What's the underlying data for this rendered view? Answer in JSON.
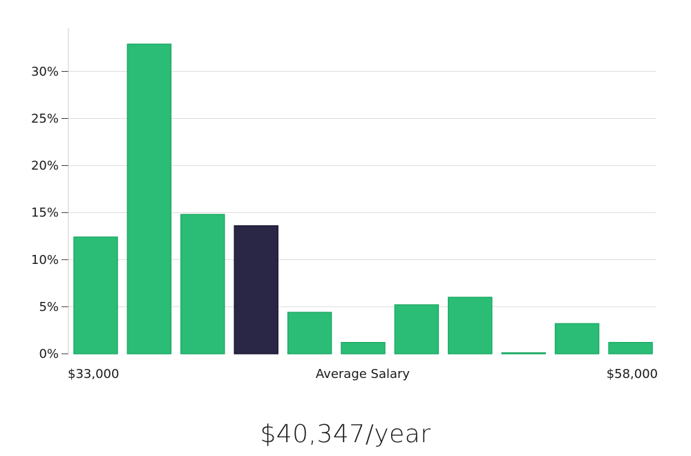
{
  "chart_data": {
    "type": "bar",
    "title": "",
    "xlabel": "Average Salary",
    "ylabel": "",
    "x_start_label": "$33,000",
    "x_end_label": "$58,000",
    "ylim": [
      0,
      34
    ],
    "yticks": [
      0,
      5,
      10,
      15,
      20,
      25,
      30
    ],
    "ytick_labels": [
      "0%",
      "5%",
      "10%",
      "15%",
      "20%",
      "25%",
      "30%"
    ],
    "grid": true,
    "values": [
      12.4,
      32.9,
      14.8,
      13.6,
      4.4,
      1.2,
      5.2,
      6.0,
      0.1,
      3.2,
      1.2
    ],
    "highlight_index": 3,
    "colors": {
      "bar": "#2bbd76",
      "bar_border": "#1faa66",
      "highlight": "#2a2646",
      "grid": "#dcdcdc",
      "axis": "#cccccc"
    }
  },
  "headline": "$40,347/year"
}
